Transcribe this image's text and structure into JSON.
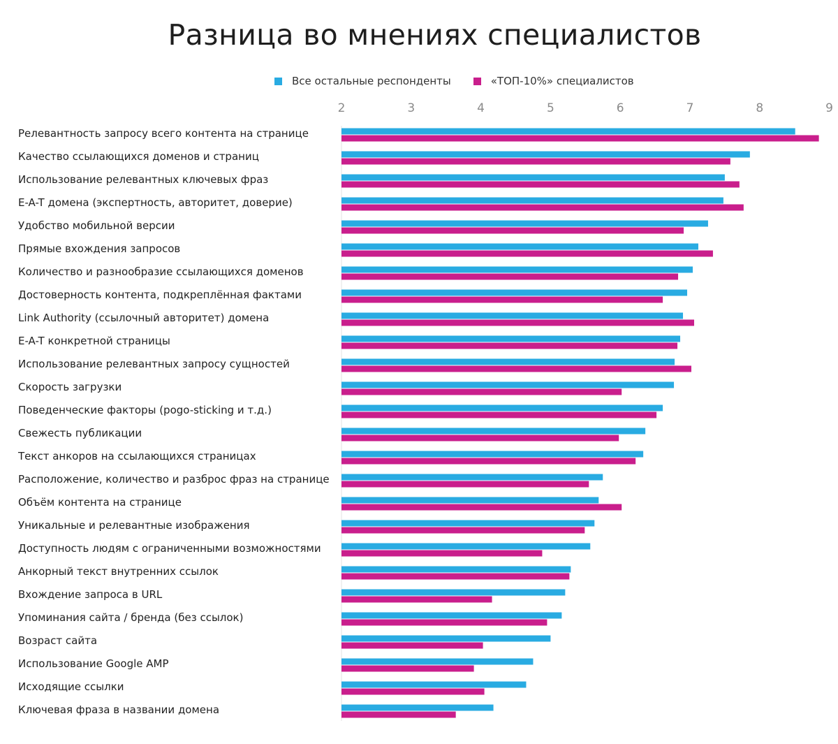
{
  "chart_data": {
    "type": "bar",
    "orientation": "horizontal",
    "title": "Разница во мнениях специалистов",
    "xlabel": "",
    "ylabel": "",
    "xlim": [
      2,
      9
    ],
    "ticks": [
      2,
      3,
      4,
      5,
      6,
      7,
      8,
      9
    ],
    "grid": false,
    "legend_position": "top",
    "categories": [
      "Релевантность запросу всего контента на странице",
      "Качество ссылающихся доменов и страниц",
      "Использование релевантных ключевых фраз",
      "E-A-T домена (экспертность, авторитет, доверие)",
      "Удобство мобильной версии",
      "Прямые вхождения запросов",
      "Количество и разнообразие ссылающихся доменов",
      "Достоверность контента, подкреплённая фактами",
      "Link Authority (ссылочный авторитет) домена",
      "E-A-T конкретной страницы",
      "Использование релевантных запросу сущностей",
      "Скорость загрузки",
      "Поведенческие факторы (pogo-sticking и т.д.)",
      "Свежесть публикации",
      "Текст анкоров на ссылающихся страницах",
      "Расположение, количество и разброс фраз на странице",
      "Объём контента на странице",
      "Уникальные и релевантные изображения",
      "Доступность  людям с ограниченными возможностями",
      "Анкорный текст внутренних ссылок",
      "Вхождение запроса в URL",
      "Упоминания сайта / бренда (без ссылок)",
      "Возраст сайта",
      "Использование Google AMP",
      "Исходящие ссылки",
      "Ключевая фраза в названии домена"
    ],
    "series": [
      {
        "name": "Все остальные респонденты",
        "color": "#29abe2",
        "values": [
          8.51,
          7.86,
          7.5,
          7.48,
          7.26,
          7.12,
          7.04,
          6.96,
          6.9,
          6.86,
          6.78,
          6.77,
          6.61,
          6.36,
          6.33,
          5.75,
          5.69,
          5.63,
          5.57,
          5.29,
          5.21,
          5.16,
          5.0,
          4.75,
          4.65,
          4.18
        ]
      },
      {
        "name": "«ТОП-10%» специалистов",
        "color": "#c91e8c",
        "values": [
          8.85,
          7.58,
          7.71,
          7.77,
          6.91,
          7.33,
          6.83,
          6.61,
          7.06,
          6.82,
          7.02,
          6.02,
          6.52,
          5.98,
          6.22,
          5.55,
          6.02,
          5.49,
          4.88,
          5.27,
          4.16,
          4.95,
          4.03,
          3.9,
          4.05,
          3.64
        ]
      }
    ]
  }
}
